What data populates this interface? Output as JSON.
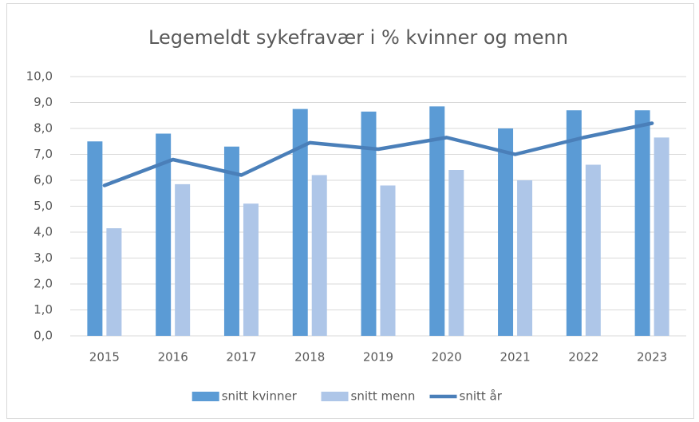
{
  "chart_data": {
    "type": "bar",
    "title": "Legemeldt sykefravær i % kvinner og menn",
    "categories": [
      "2015",
      "2016",
      "2017",
      "2018",
      "2019",
      "2020",
      "2021",
      "2022",
      "2023"
    ],
    "series": [
      {
        "name": "snitt kvinner",
        "type": "bar",
        "color": "#5b9bd5",
        "values": [
          7.5,
          7.8,
          7.3,
          8.75,
          8.65,
          8.85,
          8.0,
          8.7,
          8.7
        ]
      },
      {
        "name": "snitt menn",
        "type": "bar",
        "color": "#aec6e8",
        "values": [
          4.15,
          5.85,
          5.1,
          6.2,
          5.8,
          6.4,
          6.0,
          6.6,
          7.65
        ]
      },
      {
        "name": "snitt år",
        "type": "line",
        "color": "#4a7fb9",
        "values": [
          5.8,
          6.8,
          6.2,
          7.45,
          7.2,
          7.65,
          7.0,
          7.65,
          8.2
        ]
      }
    ],
    "ylim": [
      0,
      10
    ],
    "yticks": [
      {
        "value": 0,
        "label": "0,0"
      },
      {
        "value": 1,
        "label": "1,0"
      },
      {
        "value": 2,
        "label": "2,0"
      },
      {
        "value": 3,
        "label": "3,0"
      },
      {
        "value": 4,
        "label": "4,0"
      },
      {
        "value": 5,
        "label": "5,0"
      },
      {
        "value": 6,
        "label": "6,0"
      },
      {
        "value": 7,
        "label": "7,0"
      },
      {
        "value": 8,
        "label": "8,0"
      },
      {
        "value": 9,
        "label": "9,0"
      },
      {
        "value": 10,
        "label": "10,0"
      }
    ],
    "grid": true,
    "legend": "bottom"
  }
}
